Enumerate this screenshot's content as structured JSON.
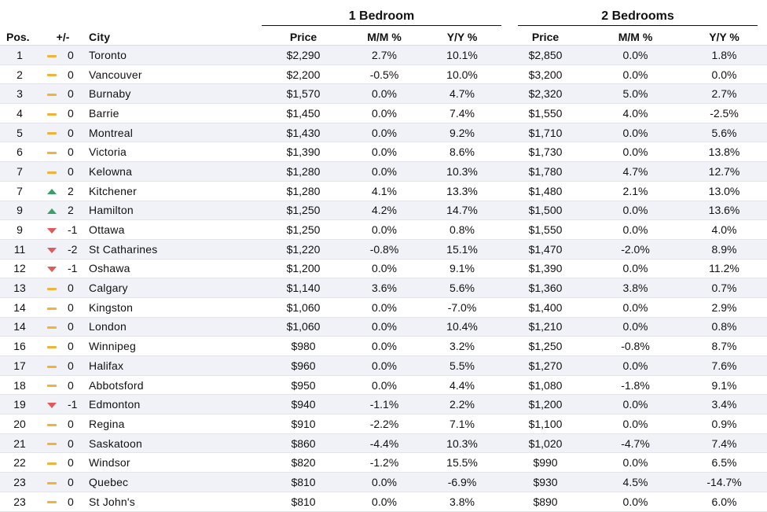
{
  "group_headers": [
    "1 Bedroom",
    "2 Bedrooms"
  ],
  "columns": [
    "Pos.",
    "+/-",
    "City",
    "Price",
    "M/M %",
    "Y/Y %",
    "Price",
    "M/M %",
    "Y/Y %"
  ],
  "colors": {
    "up": "#3aa06a",
    "down": "#e05a5a",
    "same": "#f0b23a",
    "stripe": "#f1f2f7"
  },
  "rows": [
    {
      "pos": "1",
      "trend": "same",
      "change": "0",
      "city": "Toronto",
      "p1": "$2,290",
      "mm1": "2.7%",
      "yy1": "10.1%",
      "p2": "$2,850",
      "mm2": "0.0%",
      "yy2": "1.8%"
    },
    {
      "pos": "2",
      "trend": "same",
      "change": "0",
      "city": "Vancouver",
      "p1": "$2,200",
      "mm1": "-0.5%",
      "yy1": "10.0%",
      "p2": "$3,200",
      "mm2": "0.0%",
      "yy2": "0.0%"
    },
    {
      "pos": "3",
      "trend": "same",
      "change": "0",
      "city": "Burnaby",
      "p1": "$1,570",
      "mm1": "0.0%",
      "yy1": "4.7%",
      "p2": "$2,320",
      "mm2": "5.0%",
      "yy2": "2.7%"
    },
    {
      "pos": "4",
      "trend": "same",
      "change": "0",
      "city": "Barrie",
      "p1": "$1,450",
      "mm1": "0.0%",
      "yy1": "7.4%",
      "p2": "$1,550",
      "mm2": "4.0%",
      "yy2": "-2.5%"
    },
    {
      "pos": "5",
      "trend": "same",
      "change": "0",
      "city": "Montreal",
      "p1": "$1,430",
      "mm1": "0.0%",
      "yy1": "9.2%",
      "p2": "$1,710",
      "mm2": "0.0%",
      "yy2": "5.6%"
    },
    {
      "pos": "6",
      "trend": "same",
      "change": "0",
      "city": "Victoria",
      "p1": "$1,390",
      "mm1": "0.0%",
      "yy1": "8.6%",
      "p2": "$1,730",
      "mm2": "0.0%",
      "yy2": "13.8%"
    },
    {
      "pos": "7",
      "trend": "same",
      "change": "0",
      "city": "Kelowna",
      "p1": "$1,280",
      "mm1": "0.0%",
      "yy1": "10.3%",
      "p2": "$1,780",
      "mm2": "4.7%",
      "yy2": "12.7%"
    },
    {
      "pos": "7",
      "trend": "up",
      "change": "2",
      "city": "Kitchener",
      "p1": "$1,280",
      "mm1": "4.1%",
      "yy1": "13.3%",
      "p2": "$1,480",
      "mm2": "2.1%",
      "yy2": "13.0%"
    },
    {
      "pos": "9",
      "trend": "up",
      "change": "2",
      "city": "Hamilton",
      "p1": "$1,250",
      "mm1": "4.2%",
      "yy1": "14.7%",
      "p2": "$1,500",
      "mm2": "0.0%",
      "yy2": "13.6%"
    },
    {
      "pos": "9",
      "trend": "down",
      "change": "-1",
      "city": "Ottawa",
      "p1": "$1,250",
      "mm1": "0.0%",
      "yy1": "0.8%",
      "p2": "$1,550",
      "mm2": "0.0%",
      "yy2": "4.0%"
    },
    {
      "pos": "11",
      "trend": "down",
      "change": "-2",
      "city": "St Catharines",
      "p1": "$1,220",
      "mm1": "-0.8%",
      "yy1": "15.1%",
      "p2": "$1,470",
      "mm2": "-2.0%",
      "yy2": "8.9%"
    },
    {
      "pos": "12",
      "trend": "down",
      "change": "-1",
      "city": "Oshawa",
      "p1": "$1,200",
      "mm1": "0.0%",
      "yy1": "9.1%",
      "p2": "$1,390",
      "mm2": "0.0%",
      "yy2": "11.2%"
    },
    {
      "pos": "13",
      "trend": "same",
      "change": "0",
      "city": "Calgary",
      "p1": "$1,140",
      "mm1": "3.6%",
      "yy1": "5.6%",
      "p2": "$1,360",
      "mm2": "3.8%",
      "yy2": "0.7%"
    },
    {
      "pos": "14",
      "trend": "same",
      "change": "0",
      "city": "Kingston",
      "p1": "$1,060",
      "mm1": "0.0%",
      "yy1": "-7.0%",
      "p2": "$1,400",
      "mm2": "0.0%",
      "yy2": "2.9%"
    },
    {
      "pos": "14",
      "trend": "same",
      "change": "0",
      "city": "London",
      "p1": "$1,060",
      "mm1": "0.0%",
      "yy1": "10.4%",
      "p2": "$1,210",
      "mm2": "0.0%",
      "yy2": "0.8%"
    },
    {
      "pos": "16",
      "trend": "same",
      "change": "0",
      "city": "Winnipeg",
      "p1": "$980",
      "mm1": "0.0%",
      "yy1": "3.2%",
      "p2": "$1,250",
      "mm2": "-0.8%",
      "yy2": "8.7%"
    },
    {
      "pos": "17",
      "trend": "same",
      "change": "0",
      "city": "Halifax",
      "p1": "$960",
      "mm1": "0.0%",
      "yy1": "5.5%",
      "p2": "$1,270",
      "mm2": "0.0%",
      "yy2": "7.6%"
    },
    {
      "pos": "18",
      "trend": "same",
      "change": "0",
      "city": "Abbotsford",
      "p1": "$950",
      "mm1": "0.0%",
      "yy1": "4.4%",
      "p2": "$1,080",
      "mm2": "-1.8%",
      "yy2": "9.1%"
    },
    {
      "pos": "19",
      "trend": "down",
      "change": "-1",
      "city": "Edmonton",
      "p1": "$940",
      "mm1": "-1.1%",
      "yy1": "2.2%",
      "p2": "$1,200",
      "mm2": "0.0%",
      "yy2": "3.4%"
    },
    {
      "pos": "20",
      "trend": "same",
      "change": "0",
      "city": "Regina",
      "p1": "$910",
      "mm1": "-2.2%",
      "yy1": "7.1%",
      "p2": "$1,100",
      "mm2": "0.0%",
      "yy2": "0.9%"
    },
    {
      "pos": "21",
      "trend": "same",
      "change": "0",
      "city": "Saskatoon",
      "p1": "$860",
      "mm1": "-4.4%",
      "yy1": "10.3%",
      "p2": "$1,020",
      "mm2": "-4.7%",
      "yy2": "7.4%"
    },
    {
      "pos": "22",
      "trend": "same",
      "change": "0",
      "city": "Windsor",
      "p1": "$820",
      "mm1": "-1.2%",
      "yy1": "15.5%",
      "p2": "$990",
      "mm2": "0.0%",
      "yy2": "6.5%"
    },
    {
      "pos": "23",
      "trend": "same",
      "change": "0",
      "city": "Quebec",
      "p1": "$810",
      "mm1": "0.0%",
      "yy1": "-6.9%",
      "p2": "$930",
      "mm2": "4.5%",
      "yy2": "-14.7%"
    },
    {
      "pos": "23",
      "trend": "same",
      "change": "0",
      "city": "St John's",
      "p1": "$810",
      "mm1": "0.0%",
      "yy1": "3.8%",
      "p2": "$890",
      "mm2": "0.0%",
      "yy2": "6.0%"
    }
  ]
}
